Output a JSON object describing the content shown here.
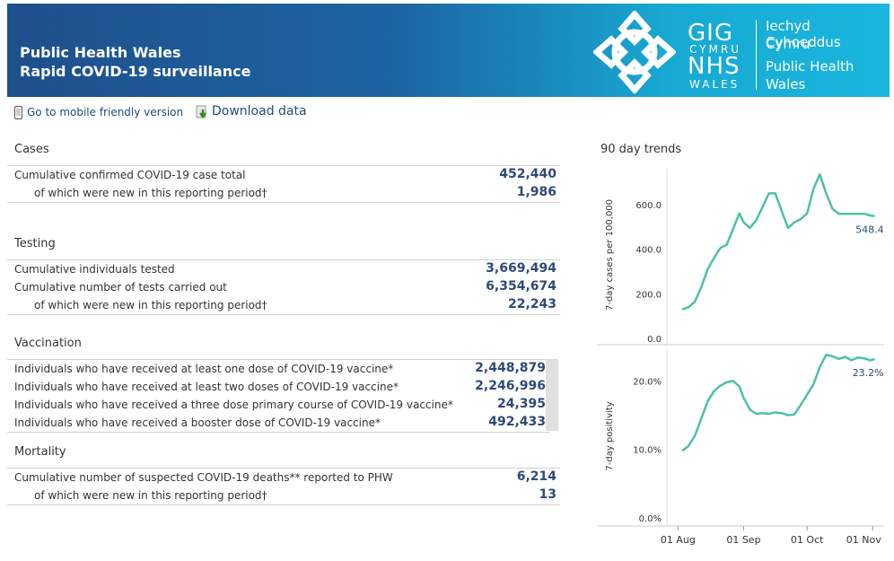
{
  "header": {
    "line1": "Public Health Wales",
    "line2": "Rapid COVID-19 surveillance",
    "logo": {
      "gig": "GIG",
      "cymru": "CYMRU",
      "nhs": "NHS",
      "wales": "WALES",
      "org_lines": [
        "Iechyd Cyhoeddus",
        "Cymru",
        "Public Health",
        "Wales"
      ]
    }
  },
  "toolbar": {
    "mobile_link": "Go to mobile friendly version",
    "download_link": "Download data"
  },
  "cases": {
    "title": "Cases",
    "rows": [
      {
        "label": "Cumulative confirmed COVID-19 case total",
        "value": "452,440"
      },
      {
        "label": "of which were new in this reporting period†",
        "value": "1,986"
      }
    ]
  },
  "testing": {
    "title": "Testing",
    "rows": [
      {
        "label": "Cumulative individuals tested",
        "value": "3,669,494"
      },
      {
        "label": "Cumulative number of tests carried out",
        "value": "6,354,674"
      },
      {
        "label": "of which were new in this reporting period†",
        "value": "22,243"
      }
    ]
  },
  "vaccination": {
    "title": "Vaccination",
    "rows": [
      {
        "label": "Individuals who have received at least one dose of COVID-19 vaccine*",
        "value": "2,448,879"
      },
      {
        "label": "Individuals who have received at least two doses of COVID-19 vaccine*",
        "value": "2,246,996"
      },
      {
        "label": "Individuals who have received a three dose primary course of COVID-19 vaccine*",
        "value": "24,395"
      },
      {
        "label": "Individuals who have received a booster dose of COVID-19 vaccine*",
        "value": "492,433"
      }
    ]
  },
  "mortality": {
    "title": "Mortality",
    "rows": [
      {
        "label": "Cumulative number of suspected COVID-19 deaths** reported to PHW",
        "value": "6,214"
      },
      {
        "label": "of which were new in this reporting period†",
        "value": "13"
      }
    ]
  },
  "trends": {
    "title": "90 day trends"
  },
  "chart_data": [
    {
      "type": "line",
      "ylabel": "7-day cases per 100,000",
      "ylim": [
        0,
        760
      ],
      "yticks": [
        0,
        200,
        400,
        600
      ],
      "ytick_labels": [
        "0.0",
        "200.0",
        "400.0",
        "600.0"
      ],
      "last_label": "548.4",
      "color": "#4dbfaa",
      "x": [
        "2021-08-03",
        "2021-08-06",
        "2021-08-09",
        "2021-08-12",
        "2021-08-15",
        "2021-08-18",
        "2021-08-21",
        "2021-08-24",
        "2021-08-27",
        "2021-08-30",
        "2021-09-01",
        "2021-09-04",
        "2021-09-07",
        "2021-09-10",
        "2021-09-13",
        "2021-09-16",
        "2021-09-19",
        "2021-09-22",
        "2021-09-25",
        "2021-09-28",
        "2021-10-01",
        "2021-10-04",
        "2021-10-07",
        "2021-10-10",
        "2021-10-13",
        "2021-10-16",
        "2021-10-19",
        "2021-10-22",
        "2021-10-25",
        "2021-10-28",
        "2021-10-31",
        "2021-11-02"
      ],
      "y": [
        130,
        140,
        165,
        230,
        310,
        360,
        405,
        420,
        490,
        560,
        520,
        495,
        530,
        590,
        650,
        650,
        570,
        495,
        520,
        535,
        560,
        670,
        735,
        650,
        580,
        558,
        558,
        558,
        558,
        558,
        550,
        548.4
      ]
    },
    {
      "type": "line",
      "ylabel": "7-day positivity",
      "ylim": [
        0,
        24.5
      ],
      "yticks": [
        0,
        10,
        20
      ],
      "ytick_labels": [
        "0.0%",
        "10.0%",
        "20.0%"
      ],
      "last_label": "23.2%",
      "color": "#4dbfaa",
      "xtick_labels": [
        "01 Aug",
        "01 Sep",
        "01 Oct",
        "01 Nov"
      ],
      "x": [
        "2021-08-03",
        "2021-08-06",
        "2021-08-09",
        "2021-08-12",
        "2021-08-15",
        "2021-08-18",
        "2021-08-21",
        "2021-08-24",
        "2021-08-27",
        "2021-08-30",
        "2021-09-01",
        "2021-09-04",
        "2021-09-07",
        "2021-09-10",
        "2021-09-13",
        "2021-09-16",
        "2021-09-19",
        "2021-09-22",
        "2021-09-25",
        "2021-09-28",
        "2021-10-01",
        "2021-10-04",
        "2021-10-07",
        "2021-10-10",
        "2021-10-13",
        "2021-10-16",
        "2021-10-19",
        "2021-10-22",
        "2021-10-25",
        "2021-10-28",
        "2021-10-31",
        "2021-11-02"
      ],
      "y": [
        9.8,
        10.5,
        12.0,
        14.5,
        17.0,
        18.5,
        19.3,
        19.8,
        20.0,
        19.2,
        17.5,
        15.8,
        15.2,
        15.3,
        15.2,
        15.4,
        15.3,
        15.0,
        15.1,
        16.5,
        18.0,
        19.5,
        22.0,
        23.8,
        23.6,
        23.2,
        23.5,
        23.0,
        23.4,
        23.3,
        23.0,
        23.2
      ]
    }
  ]
}
